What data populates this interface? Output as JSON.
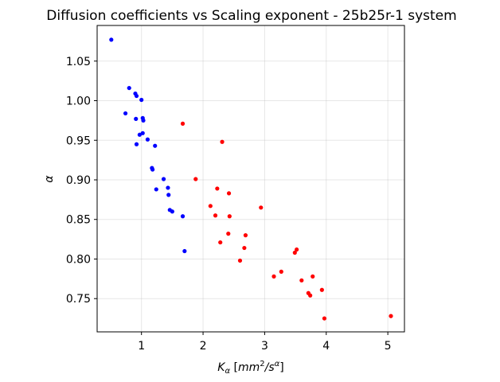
{
  "chart_data": {
    "type": "scatter",
    "title": "Diffusion coefficients vs Scaling exponent - 25b25r-1 system",
    "xlabel": "K_α [mm²/s^α]",
    "ylabel": "α",
    "xlim": [
      0.28,
      5.27
    ],
    "ylim": [
      0.708,
      1.095
    ],
    "xticks": [
      1,
      2,
      3,
      4,
      5
    ],
    "yticks": [
      0.75,
      0.8,
      0.85,
      0.9,
      0.95,
      1.0,
      1.05
    ],
    "xtick_labels": [
      "1",
      "2",
      "3",
      "4",
      "5"
    ],
    "ytick_labels": [
      "0.75",
      "0.80",
      "0.85",
      "0.90",
      "0.95",
      "1.00",
      "1.05"
    ],
    "grid": true,
    "series": [
      {
        "color": "#0000ff",
        "points": [
          [
            0.51,
            1.077
          ],
          [
            0.8,
            1.016
          ],
          [
            0.9,
            1.009
          ],
          [
            0.92,
            1.006
          ],
          [
            1.0,
            1.001
          ],
          [
            0.74,
            0.984
          ],
          [
            0.91,
            0.977
          ],
          [
            1.02,
            0.978
          ],
          [
            1.03,
            0.975
          ],
          [
            0.97,
            0.957
          ],
          [
            1.02,
            0.959
          ],
          [
            1.1,
            0.951
          ],
          [
            0.92,
            0.945
          ],
          [
            1.22,
            0.943
          ],
          [
            1.17,
            0.915
          ],
          [
            1.18,
            0.913
          ],
          [
            1.36,
            0.901
          ],
          [
            1.24,
            0.888
          ],
          [
            1.43,
            0.89
          ],
          [
            1.44,
            0.881
          ],
          [
            1.46,
            0.862
          ],
          [
            1.5,
            0.86
          ],
          [
            1.67,
            0.854
          ],
          [
            1.7,
            0.81
          ]
        ]
      },
      {
        "color": "#ff0000",
        "points": [
          [
            1.67,
            0.971
          ],
          [
            2.31,
            0.948
          ],
          [
            1.88,
            0.901
          ],
          [
            2.23,
            0.889
          ],
          [
            2.42,
            0.883
          ],
          [
            2.12,
            0.867
          ],
          [
            2.94,
            0.865
          ],
          [
            2.2,
            0.855
          ],
          [
            2.43,
            0.854
          ],
          [
            2.41,
            0.832
          ],
          [
            2.69,
            0.83
          ],
          [
            2.28,
            0.821
          ],
          [
            2.67,
            0.814
          ],
          [
            3.52,
            0.812
          ],
          [
            3.49,
            0.808
          ],
          [
            2.6,
            0.798
          ],
          [
            3.27,
            0.784
          ],
          [
            3.15,
            0.778
          ],
          [
            3.78,
            0.778
          ],
          [
            3.6,
            0.773
          ],
          [
            3.93,
            0.761
          ],
          [
            3.71,
            0.757
          ],
          [
            3.74,
            0.754
          ],
          [
            3.97,
            0.725
          ],
          [
            5.05,
            0.728
          ]
        ]
      }
    ]
  }
}
